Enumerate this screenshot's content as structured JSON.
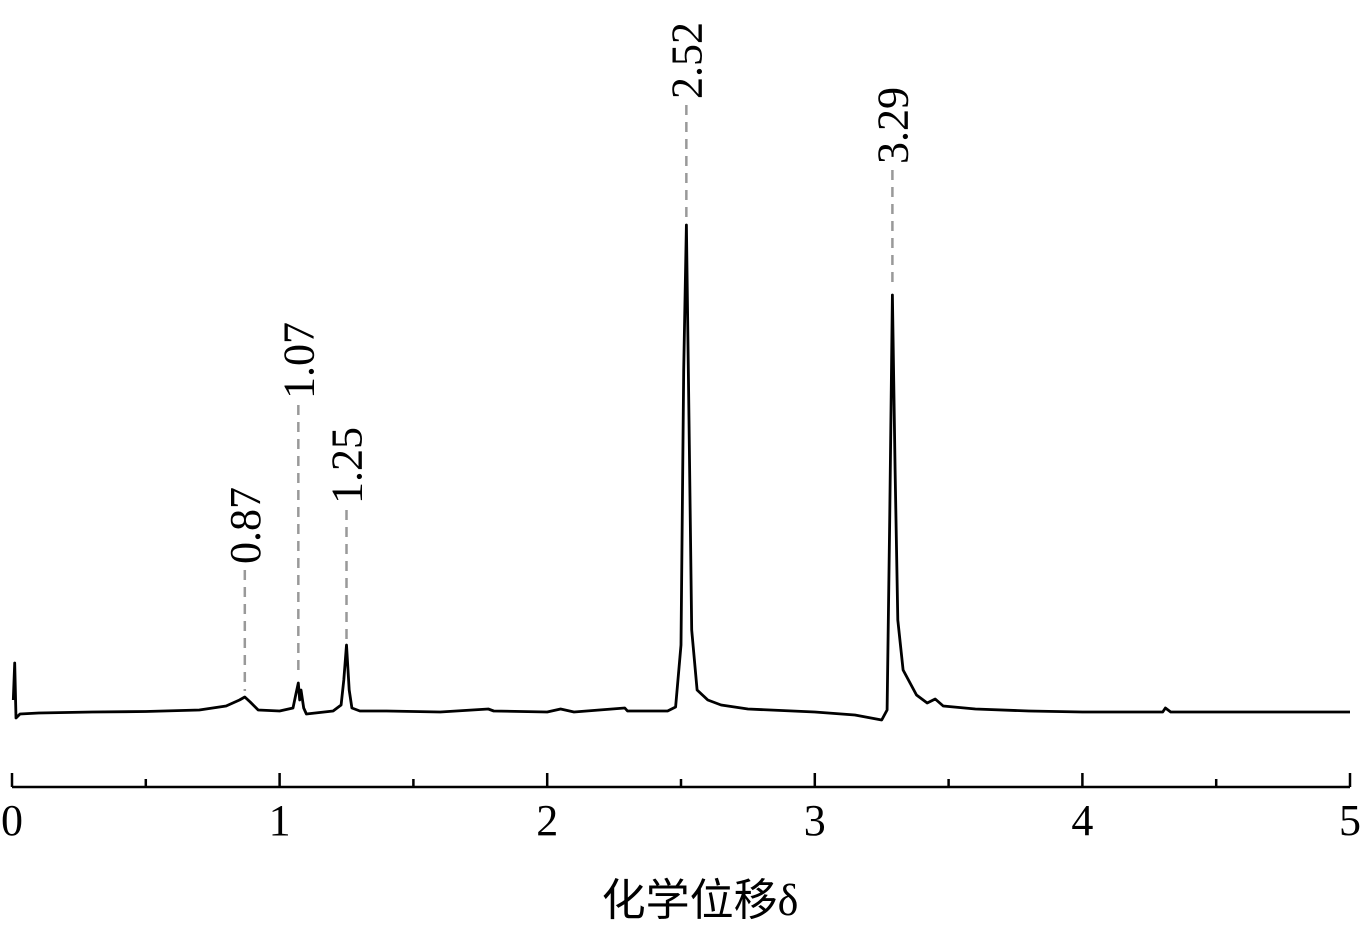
{
  "chart_data": {
    "type": "line",
    "x_label": "化学位移δ",
    "xlim": [
      0,
      5
    ],
    "xticks": [
      0,
      1,
      2,
      3,
      4,
      5
    ],
    "xminorticks": [
      0.5,
      1.5,
      2.5,
      3.5,
      4.5
    ],
    "ylim": [
      0,
      100
    ],
    "grid": false,
    "peaks": [
      0.87,
      1.07,
      1.25,
      2.52,
      3.29
    ],
    "peak_color": "#999999",
    "series": [
      {
        "color": "#000000",
        "x": [
          0.005,
          0.01,
          0.015,
          0.03,
          0.1,
          0.3,
          0.5,
          0.7,
          0.8,
          0.85,
          0.87,
          0.89,
          0.92,
          1.0,
          1.05,
          1.06,
          1.07,
          1.075,
          1.08,
          1.09,
          1.1,
          1.2,
          1.23,
          1.24,
          1.25,
          1.26,
          1.27,
          1.3,
          1.4,
          1.6,
          1.78,
          1.8,
          2.0,
          2.05,
          2.1,
          2.29,
          2.3,
          2.45,
          2.48,
          2.5,
          2.51,
          2.52,
          2.53,
          2.54,
          2.56,
          2.6,
          2.65,
          2.75,
          3.0,
          3.15,
          3.25,
          3.27,
          3.28,
          3.29,
          3.3,
          3.31,
          3.33,
          3.38,
          3.42,
          3.45,
          3.48,
          3.6,
          3.8,
          4.0,
          4.3,
          4.31,
          4.33,
          4.6,
          5.0
        ],
        "values": [
          4,
          11.4,
          0.4,
          1.2,
          1.4,
          1.6,
          1.7,
          2.0,
          2.8,
          4.0,
          4.6,
          3.6,
          2.0,
          1.8,
          2.4,
          5,
          7.4,
          4,
          6,
          2.4,
          1.2,
          1.8,
          3.0,
          8,
          15,
          6,
          2.4,
          1.8,
          1.8,
          1.6,
          2.2,
          1.8,
          1.6,
          2.2,
          1.6,
          2.4,
          1.8,
          1.8,
          2.6,
          15,
          70,
          99,
          60,
          18,
          6,
          4,
          3.0,
          2.2,
          1.6,
          1.0,
          0.0,
          2.0,
          40,
          85,
          50,
          20,
          10,
          5,
          3.4,
          4.2,
          2.8,
          2.2,
          1.8,
          1.6,
          1.6,
          2.4,
          1.6,
          1.6,
          1.6
        ]
      }
    ]
  }
}
